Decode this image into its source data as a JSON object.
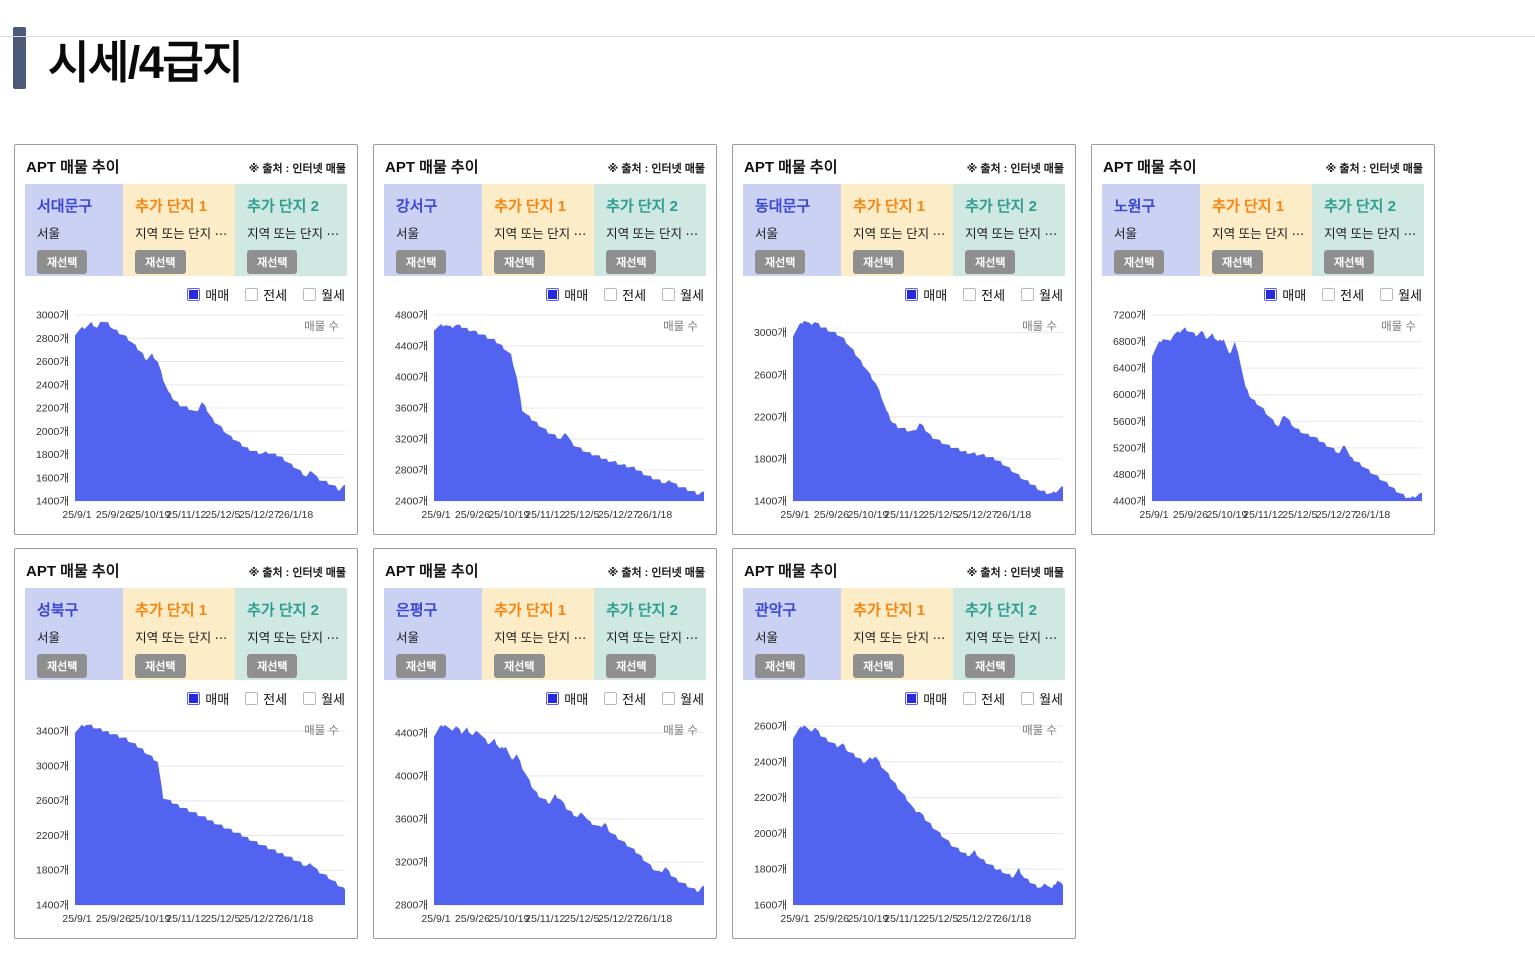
{
  "page": {
    "title": "시세/4급지"
  },
  "card": {
    "title": "APT 매물 추이",
    "source_note": "※ 출처 : 인터넷 매물",
    "region_subtitle": "서울",
    "slot1_title": "추가 단지 1",
    "slot2_title": "추가 단지 2",
    "slot_subtitle": "지역 또는 단지 ⋯",
    "reselect_label": "재선택",
    "series_label": "매물 수",
    "unit_suffix": "개",
    "legend": [
      {
        "label": "매매",
        "checked": true
      },
      {
        "label": "전세",
        "checked": false
      },
      {
        "label": "월세",
        "checked": false
      }
    ],
    "x_ticks": [
      "25/9/1",
      "25/9/26",
      "25/10/19",
      "25/11/12",
      "25/12/5",
      "25/12/27",
      "26/1/18"
    ]
  },
  "colors": {
    "accent_bar": "#4b5a78",
    "area_fill": "#5263f0",
    "region_name": "#3a46d4",
    "slot1_name": "#f8830d",
    "slot2_name": "#2d9d90",
    "panel_region_bg": "#cbd1f3",
    "panel_slot1_bg": "#fcecc7",
    "panel_slot2_bg": "#cfe9e2",
    "checked_checkbox": "#2629e2",
    "reselect_bg": "#8f8f8f"
  },
  "chart_data": [
    {
      "type": "area",
      "region": "서대문구",
      "city": "서울",
      "ylabel": "매물 수 (개)",
      "y_min": 1400,
      "y_max": 3000,
      "y_step": 200,
      "grid": true,
      "values": [
        2840,
        2880,
        2900,
        2930,
        2890,
        2950,
        2930,
        2880,
        2850,
        2820,
        2780,
        2730,
        2680,
        2620,
        2660,
        2600,
        2450,
        2330,
        2270,
        2230,
        2210,
        2190,
        2160,
        2250,
        2180,
        2100,
        2060,
        2010,
        1960,
        1930,
        1890,
        1860,
        1840,
        1820,
        1810,
        1820,
        1800,
        1790,
        1760,
        1720,
        1690,
        1650,
        1610,
        1660,
        1600,
        1575,
        1555,
        1530,
        1495,
        1540
      ]
    },
    {
      "type": "area",
      "region": "강서구",
      "city": "서울",
      "ylabel": "매물 수 (개)",
      "y_min": 2400,
      "y_max": 4800,
      "y_step": 400,
      "grid": true,
      "values": [
        4620,
        4660,
        4680,
        4640,
        4670,
        4650,
        4620,
        4600,
        4570,
        4540,
        4500,
        4470,
        4420,
        4360,
        4280,
        4000,
        3580,
        3500,
        3440,
        3390,
        3330,
        3280,
        3240,
        3200,
        3280,
        3150,
        3100,
        3060,
        3020,
        3000,
        2970,
        2940,
        2920,
        2900,
        2870,
        2850,
        2830,
        2800,
        2760,
        2720,
        2690,
        2660,
        2630,
        2660,
        2610,
        2580,
        2550,
        2520,
        2490,
        2520
      ]
    },
    {
      "type": "area",
      "region": "동대문구",
      "city": "서울",
      "ylabel": "매물 수 (개)",
      "y_min": 1400,
      "y_max": 3000,
      "y_step": 400,
      "grid": true,
      "values": [
        2980,
        3060,
        3120,
        3080,
        3100,
        3060,
        3040,
        3010,
        2990,
        2950,
        2890,
        2820,
        2750,
        2680,
        2600,
        2520,
        2400,
        2250,
        2150,
        2110,
        2090,
        2070,
        2060,
        2140,
        2080,
        2020,
        1990,
        1960,
        1930,
        1910,
        1890,
        1870,
        1860,
        1850,
        1840,
        1830,
        1810,
        1790,
        1760,
        1720,
        1680,
        1640,
        1600,
        1570,
        1540,
        1500,
        1480,
        1470,
        1500,
        1540
      ]
    },
    {
      "type": "area",
      "region": "노원구",
      "city": "서울",
      "ylabel": "매물 수 (개)",
      "y_min": 4400,
      "y_max": 7200,
      "y_step": 400,
      "grid": true,
      "values": [
        6600,
        6750,
        6850,
        6800,
        6900,
        6950,
        7000,
        6950,
        6900,
        6950,
        6850,
        6900,
        6800,
        6850,
        6600,
        6800,
        6500,
        6100,
        5950,
        5880,
        5800,
        5700,
        5600,
        5520,
        5700,
        5600,
        5500,
        5450,
        5400,
        5380,
        5330,
        5280,
        5230,
        5180,
        5120,
        5250,
        5050,
        5000,
        4950,
        4880,
        4820,
        4760,
        4700,
        4640,
        4580,
        4520,
        4470,
        4440,
        4480,
        4520
      ]
    },
    {
      "type": "area",
      "region": "성북구",
      "city": "서울",
      "ylabel": "매물 수 (개)",
      "y_min": 1400,
      "y_max": 3400,
      "y_step": 400,
      "grid": true,
      "values": [
        3400,
        3450,
        3480,
        3460,
        3430,
        3410,
        3390,
        3370,
        3340,
        3320,
        3280,
        3240,
        3200,
        3150,
        3100,
        3050,
        2640,
        2600,
        2570,
        2540,
        2510,
        2480,
        2450,
        2420,
        2390,
        2360,
        2330,
        2300,
        2270,
        2240,
        2210,
        2180,
        2150,
        2120,
        2090,
        2060,
        2030,
        2000,
        1980,
        1950,
        1920,
        1880,
        1850,
        1870,
        1800,
        1760,
        1720,
        1670,
        1620,
        1580
      ]
    },
    {
      "type": "area",
      "region": "은평구",
      "city": "서울",
      "ylabel": "매물 수 (개)",
      "y_min": 2800,
      "y_max": 4400,
      "y_step": 400,
      "grid": true,
      "values": [
        4380,
        4450,
        4480,
        4420,
        4460,
        4400,
        4440,
        4380,
        4420,
        4350,
        4300,
        4330,
        4250,
        4280,
        4150,
        4200,
        4080,
        3980,
        3880,
        3820,
        3780,
        3750,
        3820,
        3780,
        3700,
        3660,
        3620,
        3660,
        3580,
        3550,
        3520,
        3560,
        3480,
        3440,
        3400,
        3360,
        3320,
        3280,
        3230,
        3180,
        3130,
        3100,
        3150,
        3080,
        3040,
        3010,
        2980,
        2950,
        2930,
        2980
      ]
    },
    {
      "type": "area",
      "region": "관악구",
      "city": "서울",
      "ylabel": "매물 수 (개)",
      "y_min": 1600,
      "y_max": 2600,
      "y_step": 200,
      "grid": true,
      "values": [
        2540,
        2580,
        2610,
        2570,
        2590,
        2550,
        2530,
        2510,
        2490,
        2500,
        2460,
        2440,
        2420,
        2400,
        2420,
        2430,
        2380,
        2340,
        2300,
        2260,
        2220,
        2180,
        2130,
        2120,
        2080,
        2050,
        2020,
        1990,
        1960,
        1930,
        1910,
        1890,
        1880,
        1900,
        1860,
        1840,
        1820,
        1800,
        1790,
        1770,
        1760,
        1800,
        1750,
        1730,
        1710,
        1700,
        1720,
        1690,
        1740,
        1710
      ]
    }
  ]
}
